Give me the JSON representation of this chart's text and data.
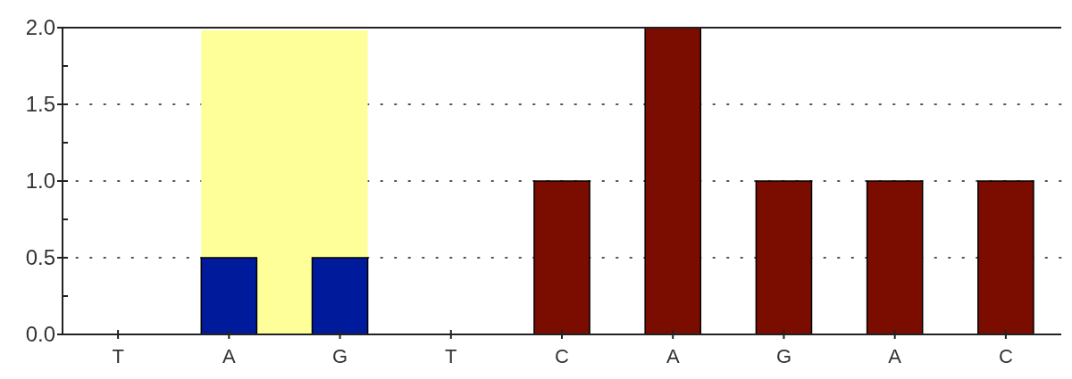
{
  "chart_data": {
    "type": "bar",
    "categories": [
      "T",
      "A",
      "G",
      "T",
      "C",
      "A",
      "G",
      "A",
      "C"
    ],
    "values": [
      0,
      0.5,
      0.5,
      0,
      1,
      2,
      1,
      1,
      1
    ],
    "colors": [
      "#7a0c00",
      "#001a9c",
      "#001a9c",
      "#7a0c00",
      "#7a0c00",
      "#7a0c00",
      "#7a0c00",
      "#7a0c00",
      "#7a0c00"
    ],
    "ylim": [
      0,
      2
    ],
    "yticks": [
      {
        "value": 0,
        "label": "0.0"
      },
      {
        "value": 0.25,
        "label": null
      },
      {
        "value": 0.5,
        "label": "0.5"
      },
      {
        "value": 0.75,
        "label": null
      },
      {
        "value": 1,
        "label": "1.0"
      },
      {
        "value": 1.25,
        "label": null
      },
      {
        "value": 1.5,
        "label": "1.5"
      },
      {
        "value": 1.75,
        "label": null
      },
      {
        "value": 2,
        "label": "2.0"
      }
    ],
    "grid": "y",
    "bands": [
      {
        "axis": "x",
        "from": "A",
        "to": "G",
        "color": "#ffff99"
      }
    ]
  }
}
